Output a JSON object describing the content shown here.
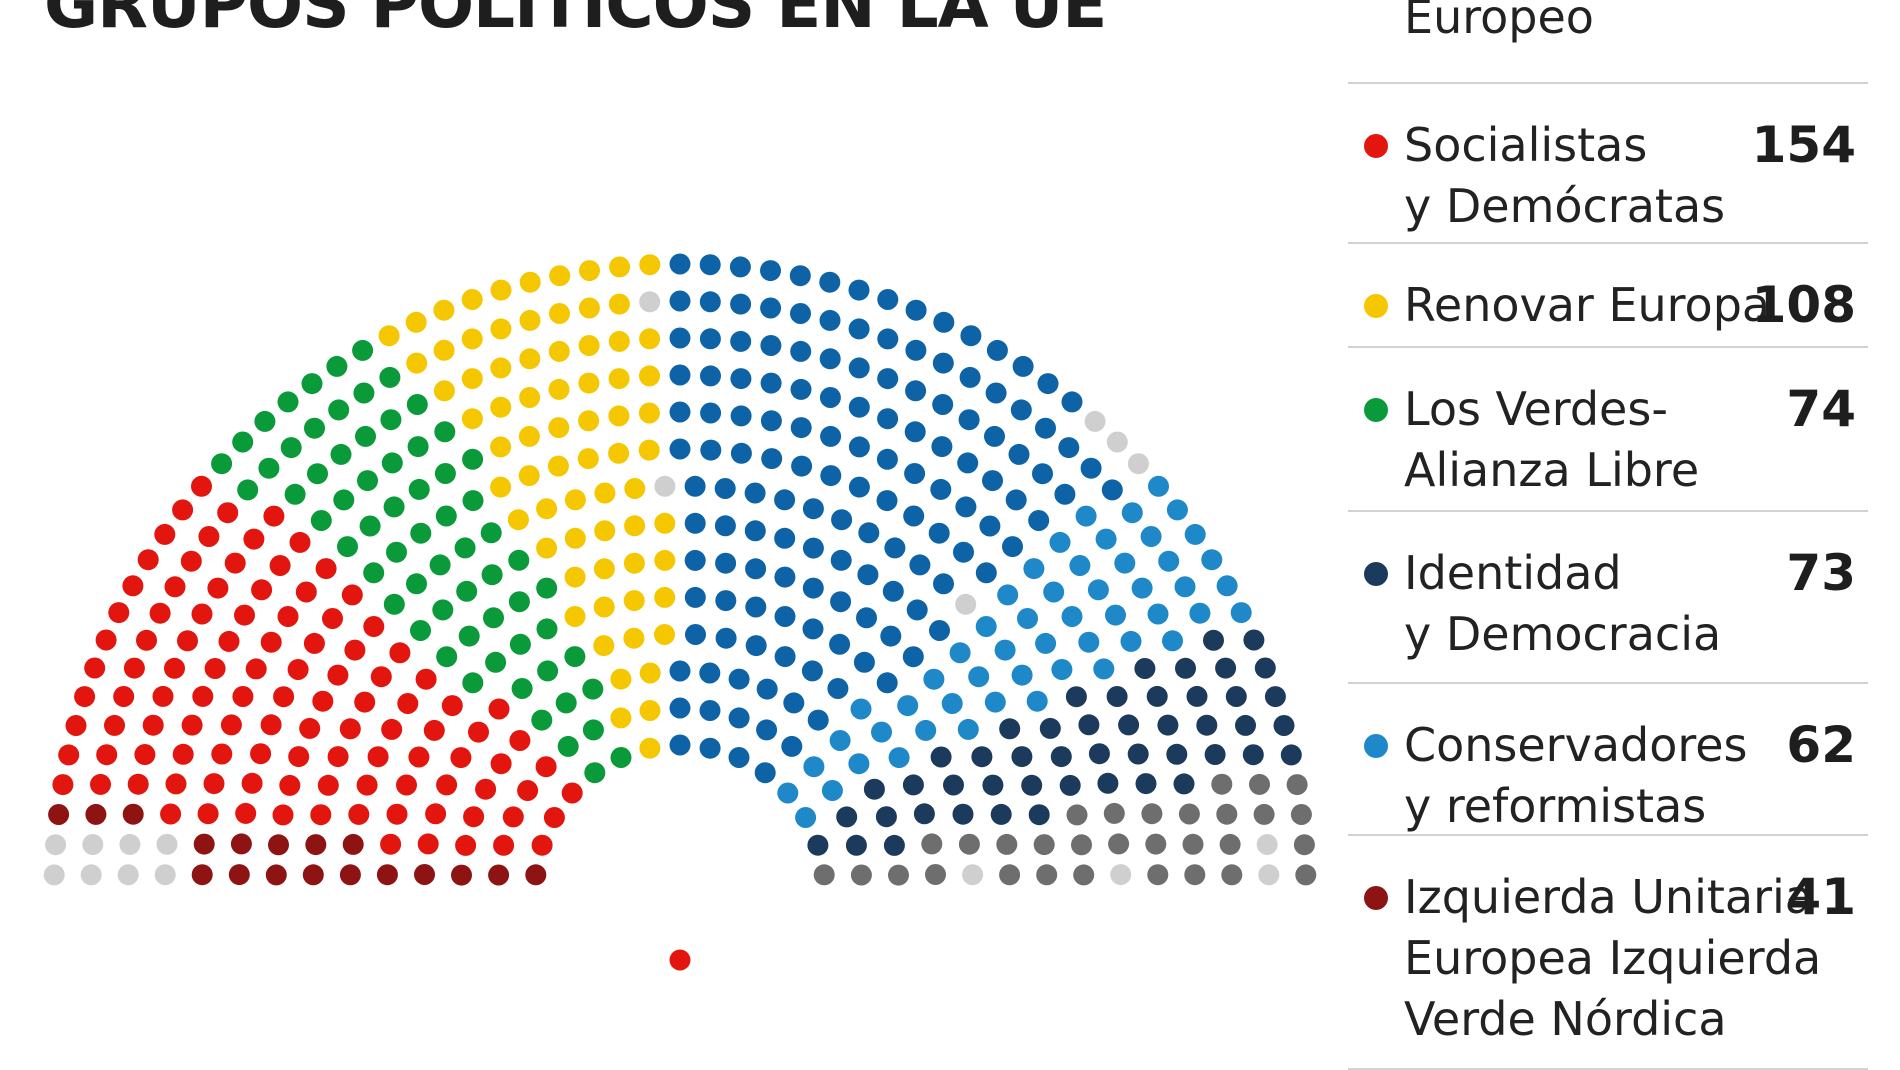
{
  "title": "GRUPOS POLÍTICOS EN LA UE",
  "chart_data": {
    "type": "parliament",
    "series": [
      {
        "name": "Socialistas y Demócratas",
        "value": 154,
        "color": "#e2150f"
      },
      {
        "name": "Renovar Europa",
        "value": 108,
        "color": "#f5c700"
      },
      {
        "name": "Los Verdes-Alianza Libre",
        "value": 74,
        "color": "#0a9a3a"
      },
      {
        "name": "Identidad y Democracia",
        "value": 73,
        "color": "#1c3a5c"
      },
      {
        "name": "Conservadores y reformistas",
        "value": 62,
        "color": "#1e88c8"
      },
      {
        "name": "Izquierda Unitaria Europea Izquierda Verde Nórdica",
        "value": 41,
        "color": "#8e1414"
      }
    ],
    "other_groups": [
      {
        "name": "Europeo",
        "color": "#0e63a6"
      }
    ],
    "extra_colors": {
      "gray": "#6e6e6e",
      "light_gray": "#cfcfcf"
    }
  },
  "legend": [
    {
      "lines": [
        "Europeo"
      ],
      "value": "",
      "color": "#0e63a6",
      "dot": false
    },
    {
      "lines": [
        "Socialistas",
        "y Demócratas"
      ],
      "value": "154",
      "color": "#e2150f",
      "dot": true
    },
    {
      "lines": [
        "Renovar Europa"
      ],
      "value": "108",
      "color": "#f5c700",
      "dot": true
    },
    {
      "lines": [
        "Los Verdes-",
        "Alianza Libre"
      ],
      "value": "74",
      "color": "#0a9a3a",
      "dot": true
    },
    {
      "lines": [
        "Identidad",
        "y Democracia"
      ],
      "value": "73",
      "color": "#1c3a5c",
      "dot": true
    },
    {
      "lines": [
        "Conservadores",
        "y reformistas"
      ],
      "value": "62",
      "color": "#1e88c8",
      "dot": true
    },
    {
      "lines": [
        "Izquierda Unitaria",
        "Europea Izquierda",
        "Verde Nórdica"
      ],
      "value": "41",
      "color": "#8e1414",
      "dot": true
    }
  ]
}
